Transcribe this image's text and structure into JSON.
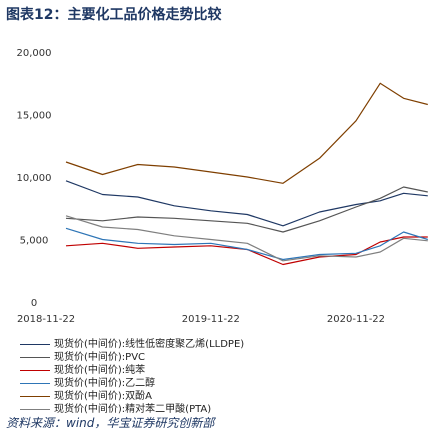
{
  "title": "图表12：主要化工品价格走势比较",
  "source": "资料来源：wind，华宝证券研究创新部",
  "chart_data": {
    "type": "line",
    "title": "图表12：主要化工品价格走势比较",
    "xlabel": "",
    "ylabel": "",
    "ylim": [
      0,
      20000
    ],
    "yticks": [
      0,
      5000,
      10000,
      15000,
      20000
    ],
    "ytick_labels": [
      "0",
      "5,000",
      "10,000",
      "15,000",
      "20,000"
    ],
    "xticks": [
      "2018-11-22",
      "2019-11-22",
      "2020-11-22"
    ],
    "xrange": [
      "2018-11-22",
      "2021-05-15"
    ],
    "grid": false,
    "legend_position": "bottom",
    "x": [
      "2018-11",
      "2019-02",
      "2019-05",
      "2019-08",
      "2019-11",
      "2020-02",
      "2020-05",
      "2020-08",
      "2020-11",
      "2021-01",
      "2021-03",
      "2021-05"
    ],
    "series": [
      {
        "name": "现货价(中间价):线性低密度聚乙烯(LLDPE)",
        "color": "#1f3864",
        "values": [
          9700,
          8600,
          8400,
          7700,
          7300,
          7000,
          6100,
          7200,
          7800,
          8100,
          8700,
          8500
        ]
      },
      {
        "name": "现货价(中间价):PVC",
        "color": "#555555",
        "values": [
          6700,
          6500,
          6800,
          6700,
          6500,
          6300,
          5600,
          6500,
          7600,
          8300,
          9200,
          8800
        ]
      },
      {
        "name": "现货价(中间价):纯苯",
        "color": "#c00000",
        "values": [
          4500,
          4700,
          4300,
          4400,
          4500,
          4200,
          3000,
          3600,
          3800,
          4800,
          5200,
          5200
        ]
      },
      {
        "name": "现货价(中间价):乙二醇",
        "color": "#2e75b6",
        "values": [
          5900,
          5000,
          4700,
          4600,
          4700,
          4200,
          3400,
          3800,
          3900,
          4500,
          5600,
          5000
        ]
      },
      {
        "name": "现货价(中间价):双酚A",
        "color": "#7f3f00",
        "values": [
          11200,
          10200,
          11000,
          10800,
          10400,
          10000,
          9500,
          11500,
          14500,
          17500,
          16300,
          15800
        ]
      },
      {
        "name": "现货价(中间价):精对苯二甲酸(PTA)",
        "color": "#7f7f7f",
        "values": [
          6900,
          6000,
          5800,
          5300,
          5000,
          4700,
          3300,
          3700,
          3600,
          4000,
          5100,
          4900
        ]
      }
    ]
  }
}
